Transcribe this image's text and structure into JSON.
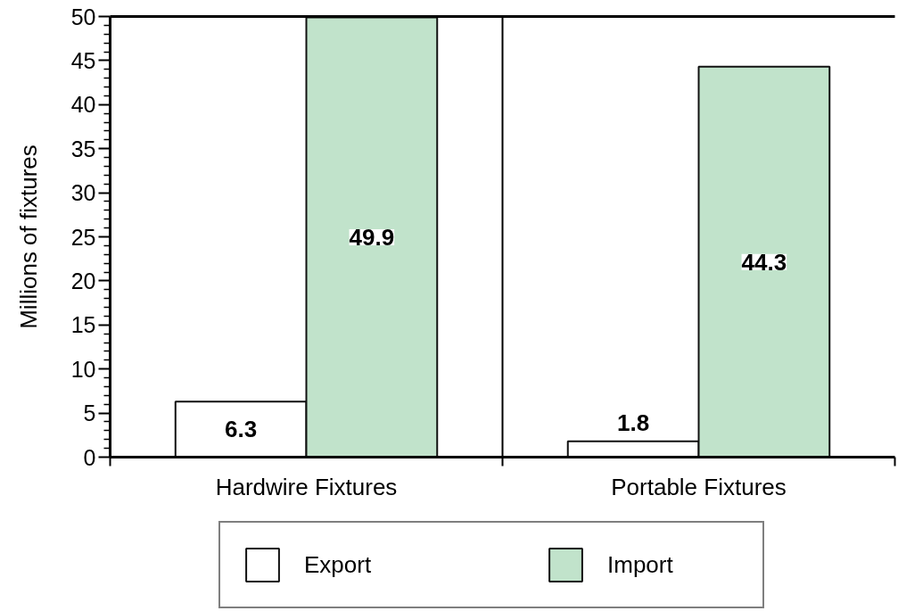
{
  "chart_data": {
    "type": "bar",
    "categories": [
      "Hardwire Fixtures",
      "Portable Fixtures"
    ],
    "series": [
      {
        "name": "Export",
        "color": "#ffffff",
        "values": [
          6.3,
          1.8
        ]
      },
      {
        "name": "Import",
        "color": "#c1e3cb",
        "values": [
          49.9,
          44.3
        ]
      }
    ],
    "ylabel": "Millions of fixtures",
    "ylim": [
      0,
      50
    ],
    "yticks": [
      0,
      {
        "value": 1,
        "label": null
      },
      {
        "value": 2,
        "label": null
      },
      {
        "value": 3,
        "label": null
      },
      {
        "value": 4,
        "label": null
      },
      5,
      {
        "value": 6,
        "label": null
      },
      {
        "value": 7,
        "label": null
      },
      {
        "value": 8,
        "label": null
      },
      {
        "value": 9,
        "label": null
      },
      10,
      {
        "value": 11,
        "label": null
      },
      {
        "value": 12,
        "label": null
      },
      {
        "value": 13,
        "label": null
      },
      {
        "value": 14,
        "label": null
      },
      15,
      {
        "value": 16,
        "label": null
      },
      {
        "value": 17,
        "label": null
      },
      {
        "value": 18,
        "label": null
      },
      {
        "value": 19,
        "label": null
      },
      20,
      {
        "value": 21,
        "label": null
      },
      {
        "value": 22,
        "label": null
      },
      {
        "value": 23,
        "label": null
      },
      {
        "value": 24,
        "label": null
      },
      25,
      {
        "value": 26,
        "label": null
      },
      {
        "value": 27,
        "label": null
      },
      {
        "value": 28,
        "label": null
      },
      {
        "value": 29,
        "label": null
      },
      30,
      {
        "value": 31,
        "label": null
      },
      {
        "value": 32,
        "label": null
      },
      {
        "value": 33,
        "label": null
      },
      {
        "value": 34,
        "label": null
      },
      35,
      {
        "value": 36,
        "label": null
      },
      {
        "value": 37,
        "label": null
      },
      {
        "value": 38,
        "label": null
      },
      {
        "value": 39,
        "label": null
      },
      40,
      {
        "value": 41,
        "label": null
      },
      {
        "value": 42,
        "label": null
      },
      {
        "value": 43,
        "label": null
      },
      {
        "value": 44,
        "label": null
      },
      45,
      {
        "value": 46,
        "label": null
      },
      {
        "value": 47,
        "label": null
      },
      {
        "value": 48,
        "label": null
      },
      {
        "value": 49,
        "label": null
      },
      50
    ],
    "grid": "x",
    "legend": "bottom",
    "data_labels": true
  }
}
